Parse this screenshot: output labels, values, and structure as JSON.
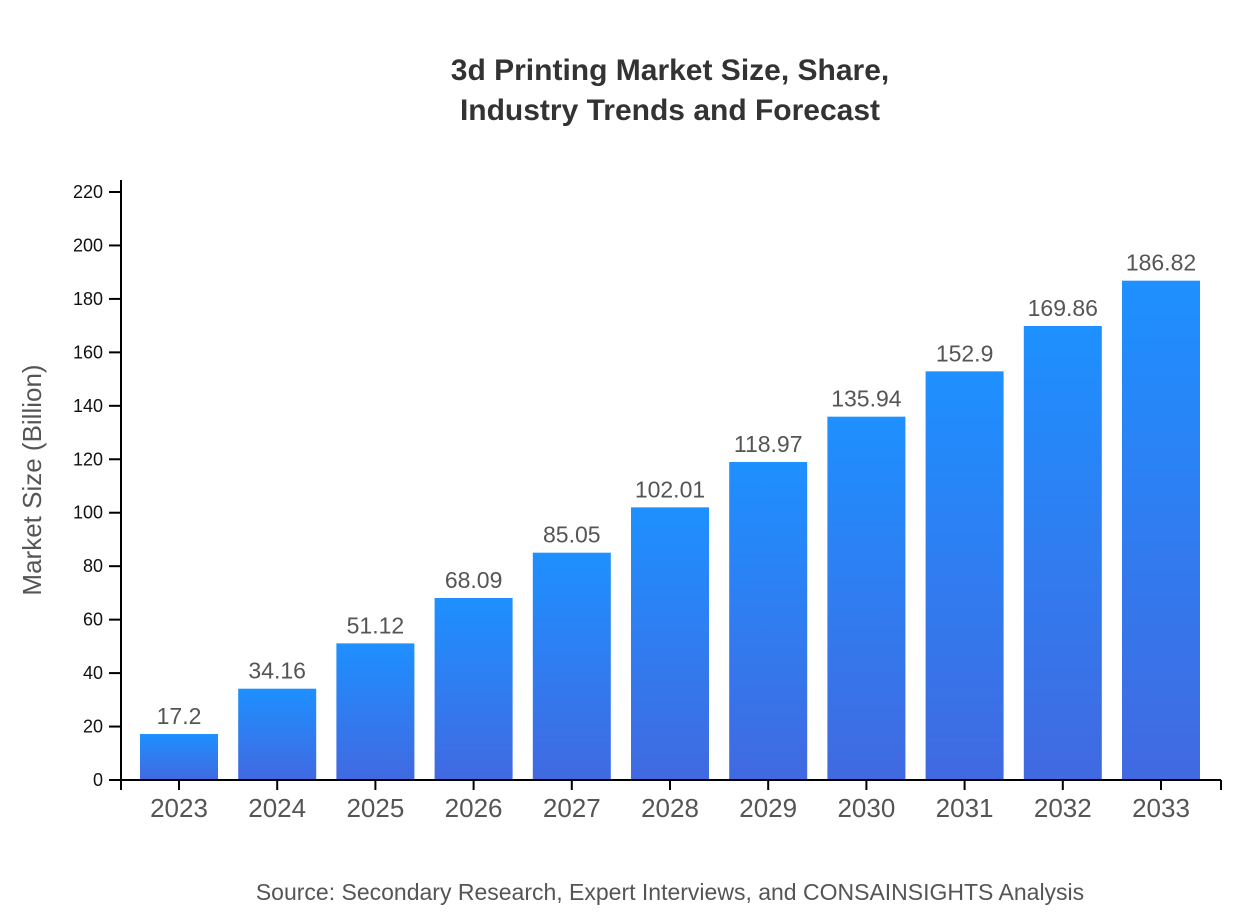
{
  "chart_data": {
    "type": "bar",
    "title_lines": [
      "3d Printing Market Size, Share,",
      "Industry Trends and Forecast"
    ],
    "ylabel": "Market Size (Billion)",
    "xlabel": "",
    "categories": [
      "2023",
      "2024",
      "2025",
      "2026",
      "2027",
      "2028",
      "2029",
      "2030",
      "2031",
      "2032",
      "2033"
    ],
    "values": [
      17.2,
      34.16,
      51.12,
      68.09,
      85.05,
      102.01,
      118.97,
      135.94,
      152.9,
      169.86,
      186.82
    ],
    "value_labels": [
      "17.2",
      "34.16",
      "51.12",
      "68.09",
      "85.05",
      "102.01",
      "118.97",
      "135.94",
      "152.9",
      "169.86",
      "186.82"
    ],
    "ylim": [
      0,
      220
    ],
    "yticks": [
      0,
      20,
      40,
      60,
      80,
      100,
      120,
      140,
      160,
      180,
      200,
      220
    ],
    "grid": false,
    "colors": {
      "bar_top": "#1e90ff",
      "bar_bottom": "#4169e1"
    },
    "source": "Source: Secondary Research, Expert Interviews, and CONSAINSIGHTS Analysis"
  }
}
